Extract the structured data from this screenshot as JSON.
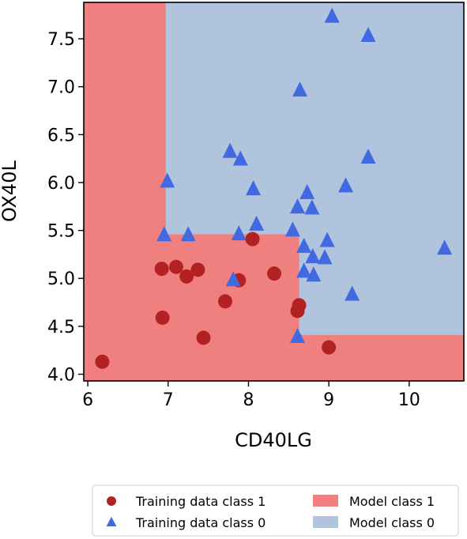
{
  "chart_data": {
    "type": "scatter",
    "title": "",
    "xlabel": "CD40LG",
    "ylabel": "OX40L",
    "xlim": [
      5.95,
      10.68
    ],
    "ylim": [
      3.93,
      7.88
    ],
    "x_ticks": [
      6,
      7,
      8,
      9,
      10
    ],
    "x_tick_labels": [
      "6",
      "7",
      "8",
      "9",
      "10"
    ],
    "y_ticks": [
      4.0,
      4.5,
      5.0,
      5.5,
      6.0,
      6.5,
      7.0,
      7.5
    ],
    "y_tick_labels": [
      "4.0",
      "4.5",
      "5.0",
      "5.5",
      "6.0",
      "6.5",
      "7.0",
      "7.5"
    ],
    "grid": false,
    "legend_position": "bottom-center, below plot",
    "colors": {
      "class1_point": "#b22222",
      "class0_point": "#4169e1",
      "class1_region": "#f08080",
      "class0_region": "#b0c4de"
    },
    "decision_regions": [
      {
        "label": "Model class 1",
        "x": [
          5.95,
          6.97
        ],
        "y": [
          3.93,
          7.88
        ]
      },
      {
        "label": "Model class 1",
        "x": [
          5.95,
          8.63
        ],
        "y": [
          3.93,
          5.46
        ]
      },
      {
        "label": "Model class 1",
        "x": [
          5.95,
          10.68
        ],
        "y": [
          3.93,
          4.41
        ]
      }
    ],
    "series": [
      {
        "name": "Training data class 1",
        "marker": "circle",
        "points": [
          [
            6.18,
            4.13
          ],
          [
            6.92,
            5.1
          ],
          [
            6.93,
            4.59
          ],
          [
            7.1,
            5.12
          ],
          [
            7.23,
            5.02
          ],
          [
            7.37,
            5.09
          ],
          [
            7.44,
            4.38
          ],
          [
            7.71,
            4.76
          ],
          [
            7.88,
            4.98
          ],
          [
            8.05,
            5.41
          ],
          [
            8.32,
            5.05
          ],
          [
            8.61,
            4.66
          ],
          [
            8.63,
            4.72
          ],
          [
            9.0,
            4.28
          ]
        ]
      },
      {
        "name": "Training data class 0",
        "marker": "triangle",
        "points": [
          [
            9.04,
            7.73
          ],
          [
            9.49,
            7.53
          ],
          [
            8.64,
            6.96
          ],
          [
            7.77,
            6.32
          ],
          [
            7.9,
            6.24
          ],
          [
            9.49,
            6.26
          ],
          [
            6.99,
            6.01
          ],
          [
            8.06,
            5.93
          ],
          [
            9.21,
            5.96
          ],
          [
            8.73,
            5.89
          ],
          [
            8.61,
            5.74
          ],
          [
            8.79,
            5.73
          ],
          [
            8.1,
            5.56
          ],
          [
            6.95,
            5.45
          ],
          [
            7.25,
            5.45
          ],
          [
            7.88,
            5.46
          ],
          [
            8.55,
            5.5
          ],
          [
            8.98,
            5.39
          ],
          [
            8.69,
            5.33
          ],
          [
            10.44,
            5.31
          ],
          [
            8.8,
            5.22
          ],
          [
            8.95,
            5.21
          ],
          [
            8.69,
            5.07
          ],
          [
            8.81,
            5.03
          ],
          [
            7.81,
            4.98
          ],
          [
            9.29,
            4.83
          ],
          [
            8.61,
            4.39
          ]
        ]
      }
    ]
  },
  "legend": [
    {
      "label": "Training data class 1",
      "symbol": "circle",
      "color": "#b22222"
    },
    {
      "label": "Training data class 0",
      "symbol": "triangle",
      "color": "#4169e1"
    },
    {
      "label": "Model class 1",
      "symbol": "square",
      "color": "#f08080"
    },
    {
      "label": "Model class 0",
      "symbol": "square",
      "color": "#b0c4de"
    }
  ]
}
